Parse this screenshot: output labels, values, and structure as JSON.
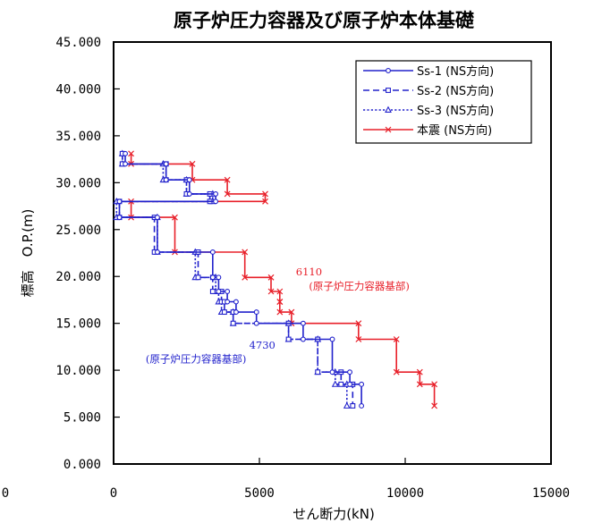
{
  "colors": {
    "blue": "#2222cc",
    "red": "#e8202a",
    "frame": "#000000"
  },
  "chart_data": {
    "type": "line",
    "title": "原子炉圧力容器及び原子炉本体基礎",
    "xlabel": "せん断力(kN)",
    "ylabel": "標高　O.P.(m)",
    "xlim": [
      0,
      15000
    ],
    "ylim": [
      0,
      45
    ],
    "x_ticks": [
      {
        "v": 0,
        "label": "0"
      },
      {
        "v": 5000,
        "label": "5000"
      },
      {
        "v": 10000,
        "label": "10000"
      },
      {
        "v": 15000,
        "label": "15000"
      }
    ],
    "y_ticks": [
      {
        "v": 0,
        "label": "0.000"
      },
      {
        "v": 5,
        "label": "5.000"
      },
      {
        "v": 10,
        "label": "10.000"
      },
      {
        "v": 15,
        "label": "15.000"
      },
      {
        "v": 20,
        "label": "20.000"
      },
      {
        "v": 25,
        "label": "25.000"
      },
      {
        "v": 30,
        "label": "30.000"
      },
      {
        "v": 35,
        "label": "35.000"
      },
      {
        "v": 40,
        "label": "40.000"
      },
      {
        "v": 45,
        "label": "45.000"
      }
    ],
    "left_stub_label": "0",
    "grid": false,
    "legend_position": "top-right",
    "series": [
      {
        "name": "Ss-1 (NS方向)",
        "color": "#2222cc",
        "dash": "solid",
        "marker": "circle",
        "points": [
          [
            400,
            33.1
          ],
          [
            400,
            32.0
          ],
          [
            1800,
            32.0
          ],
          [
            1800,
            30.3
          ],
          [
            2600,
            30.3
          ],
          [
            2600,
            28.8
          ],
          [
            3500,
            28.8
          ],
          [
            3500,
            28.0
          ],
          [
            200,
            28.0
          ],
          [
            200,
            26.3
          ],
          [
            1500,
            26.3
          ],
          [
            1500,
            22.6
          ],
          [
            3400,
            22.6
          ],
          [
            3400,
            19.9
          ],
          [
            3600,
            19.9
          ],
          [
            3600,
            18.4
          ],
          [
            3900,
            18.4
          ],
          [
            3900,
            17.3
          ],
          [
            4200,
            17.3
          ],
          [
            4200,
            16.2
          ],
          [
            4900,
            16.2
          ],
          [
            4900,
            15.0
          ],
          [
            6500,
            15.0
          ],
          [
            6500,
            13.3
          ],
          [
            7500,
            13.3
          ],
          [
            7500,
            9.8
          ],
          [
            8100,
            9.8
          ],
          [
            8100,
            8.5
          ],
          [
            8500,
            8.5
          ],
          [
            8500,
            6.2
          ]
        ]
      },
      {
        "name": "Ss-2 (NS方向)",
        "color": "#2222cc",
        "dash": "dashed",
        "marker": "square",
        "points": [
          [
            300,
            33.1
          ],
          [
            300,
            32.0
          ],
          [
            1800,
            32.0
          ],
          [
            1800,
            30.3
          ],
          [
            2500,
            30.3
          ],
          [
            2500,
            28.8
          ],
          [
            3300,
            28.8
          ],
          [
            3300,
            28.0
          ],
          [
            200,
            28.0
          ],
          [
            200,
            26.3
          ],
          [
            1400,
            26.3
          ],
          [
            1400,
            22.6
          ],
          [
            2900,
            22.6
          ],
          [
            2900,
            19.9
          ],
          [
            3400,
            19.9
          ],
          [
            3400,
            18.4
          ],
          [
            3700,
            18.4
          ],
          [
            3700,
            17.3
          ],
          [
            3800,
            17.3
          ],
          [
            3800,
            16.2
          ],
          [
            4100,
            16.2
          ],
          [
            4100,
            15.0
          ],
          [
            6000,
            15.0
          ],
          [
            6000,
            13.3
          ],
          [
            7000,
            13.3
          ],
          [
            7000,
            9.8
          ],
          [
            7800,
            9.8
          ],
          [
            7800,
            8.5
          ],
          [
            8200,
            8.5
          ],
          [
            8200,
            6.2
          ]
        ]
      },
      {
        "name": "Ss-3 (NS方向)",
        "color": "#2222cc",
        "dash": "dotted",
        "marker": "triangle",
        "points": [
          [
            300,
            33.1
          ],
          [
            300,
            32.0
          ],
          [
            1700,
            32.0
          ],
          [
            1700,
            30.3
          ],
          [
            2500,
            30.3
          ],
          [
            2500,
            28.8
          ],
          [
            3400,
            28.8
          ],
          [
            3400,
            28.0
          ],
          [
            100,
            28.0
          ],
          [
            100,
            26.3
          ],
          [
            1500,
            26.3
          ],
          [
            1500,
            22.6
          ],
          [
            2800,
            22.6
          ],
          [
            2800,
            19.9
          ],
          [
            3500,
            19.9
          ],
          [
            3500,
            18.4
          ],
          [
            3600,
            18.4
          ],
          [
            3600,
            17.3
          ],
          [
            3700,
            17.3
          ],
          [
            3700,
            16.2
          ],
          [
            4100,
            16.2
          ],
          [
            4100,
            15.0
          ],
          [
            6000,
            15.0
          ],
          [
            6000,
            13.3
          ],
          [
            7000,
            13.3
          ],
          [
            7000,
            9.8
          ],
          [
            7600,
            9.8
          ],
          [
            7600,
            8.5
          ],
          [
            8000,
            8.5
          ],
          [
            8000,
            6.2
          ]
        ]
      },
      {
        "name": "本震 (NS方向)",
        "color": "#e8202a",
        "dash": "solid",
        "marker": "x",
        "points": [
          [
            600,
            33.1
          ],
          [
            600,
            32.0
          ],
          [
            2700,
            32.0
          ],
          [
            2700,
            30.3
          ],
          [
            3900,
            30.3
          ],
          [
            3900,
            28.8
          ],
          [
            5200,
            28.8
          ],
          [
            5200,
            28.0
          ],
          [
            600,
            28.0
          ],
          [
            600,
            26.3
          ],
          [
            2100,
            26.3
          ],
          [
            2100,
            22.6
          ],
          [
            4500,
            22.6
          ],
          [
            4500,
            19.9
          ],
          [
            5400,
            19.9
          ],
          [
            5400,
            18.4
          ],
          [
            5700,
            18.4
          ],
          [
            5700,
            17.3
          ],
          [
            5700,
            17.3
          ],
          [
            5700,
            16.2
          ],
          [
            6100,
            16.2
          ],
          [
            6100,
            15.0
          ],
          [
            8400,
            15.0
          ],
          [
            8400,
            13.3
          ],
          [
            9700,
            13.3
          ],
          [
            9700,
            9.8
          ],
          [
            10500,
            9.8
          ],
          [
            10500,
            8.5
          ],
          [
            11000,
            8.5
          ],
          [
            11000,
            6.2
          ]
        ]
      }
    ],
    "annotations": [
      {
        "text": "6110",
        "color": "#e8202a",
        "x": 6700,
        "y": 20.1,
        "anchor": "middle"
      },
      {
        "text": "(原子炉圧力容器基部)",
        "color": "#e8202a",
        "x": 6700,
        "y": 18.6,
        "anchor": "start"
      },
      {
        "text": "4730",
        "color": "#2222cc",
        "x": 5100,
        "y": 12.3,
        "anchor": "middle"
      },
      {
        "text": "(原子炉圧力容器基部)",
        "color": "#2222cc",
        "x": 1100,
        "y": 10.8,
        "anchor": "start"
      }
    ]
  }
}
